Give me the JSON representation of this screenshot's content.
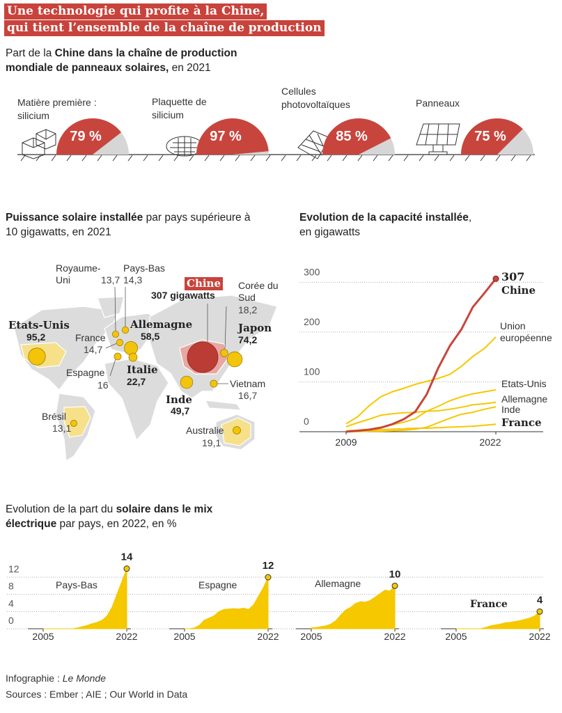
{
  "header": {
    "title_lines": [
      "Une technologie qui profite à la Chine,",
      "qui tient l’ensemble de la chaîne de production"
    ]
  },
  "chart_data": [
    {
      "type": "gauge",
      "title": [
        {
          "text": "Part de la "
        },
        {
          "text": "Chine dans la chaîne de production mondiale de panneaux solaires,",
          "bold": true
        },
        {
          "text": " en 2021"
        }
      ],
      "categories": [
        "Matière première : silicium",
        "Plaquette de silicium",
        "Cellules photovoltaïques",
        "Panneaux"
      ],
      "values": [
        79,
        97,
        85,
        75
      ],
      "value_labels": [
        "79 %",
        "97 %",
        "85 %",
        "75 %"
      ],
      "ylim": [
        0,
        100
      ],
      "color": "#c8453d",
      "track_color": "#d6d6d6"
    },
    {
      "type": "bubble-map",
      "title": [
        {
          "text": "Puissance solaire installée",
          "bold": true
        },
        {
          "text": " par pays supérieure à 10 gigawatts, en 2021"
        }
      ],
      "names": [
        "Etats-Unis",
        "Royaume-Uni",
        "Pays-Bas",
        "France",
        "Allemagne",
        "Espagne",
        "Italie",
        "Chine",
        "Corée du Sud",
        "Japon",
        "Vietnam",
        "Inde",
        "Brésil",
        "Australie"
      ],
      "values": [
        95.2,
        13.7,
        14.3,
        14.7,
        58.5,
        16,
        22.7,
        307,
        18.2,
        74.2,
        16.7,
        49.7,
        13.1,
        19.1
      ],
      "value_labels": [
        "95,2",
        "13,7",
        "14,3",
        "14,7",
        "58,5",
        "16",
        "22,7",
        "307 gigawatts",
        "18,2",
        "74,2",
        "16,7",
        "49,7",
        "13,1",
        "19,1"
      ],
      "colors": [
        "#f2c200",
        "#f2c200",
        "#f2c200",
        "#f2c200",
        "#f2c200",
        "#f2c200",
        "#f2c200",
        "#b8362f",
        "#f2c200",
        "#f2c200",
        "#f2c200",
        "#f2c200",
        "#f2c200",
        "#f2c200"
      ]
    },
    {
      "type": "line",
      "title": [
        {
          "text": "Evolution de la capacité installée",
          "bold": true
        },
        {
          "text": ", en gigawatts"
        }
      ],
      "x": [
        2009,
        2010,
        2011,
        2012,
        2013,
        2014,
        2015,
        2016,
        2017,
        2018,
        2019,
        2020,
        2021,
        2022
      ],
      "xlim": [
        2009,
        2022
      ],
      "xticks": [
        2009,
        2022
      ],
      "ylim": [
        0,
        320
      ],
      "yticks": [
        0,
        100,
        200,
        300
      ],
      "grid": true,
      "series": [
        {
          "name": "Chine",
          "color": "#c8453d",
          "values": [
            0,
            2,
            4,
            8,
            15,
            25,
            40,
            75,
            128,
            172,
            205,
            250,
            278,
            307
          ]
        },
        {
          "name": "Union européenne",
          "color": "#f5c800",
          "values": [
            16,
            30,
            52,
            70,
            80,
            87,
            95,
            101,
            107,
            115,
            131,
            151,
            167,
            190
          ]
        },
        {
          "name": "Etats-Unis",
          "color": "#f5c800",
          "values": [
            2,
            3,
            5,
            9,
            14,
            19,
            26,
            41,
            51,
            62,
            70,
            76,
            80,
            84
          ]
        },
        {
          "name": "Allemagne",
          "color": "#f5c800",
          "values": [
            10,
            18,
            25,
            33,
            36,
            38,
            39,
            41,
            42,
            45,
            49,
            54,
            56,
            59
          ]
        },
        {
          "name": "Inde",
          "color": "#f5c800",
          "values": [
            0,
            0,
            1,
            1,
            2,
            3,
            5,
            9,
            18,
            27,
            35,
            39,
            45,
            50
          ]
        },
        {
          "name": "France",
          "color": "#f5c800",
          "values": [
            0,
            1,
            2,
            4,
            5,
            6,
            7,
            7,
            8,
            9,
            10,
            11,
            13,
            15
          ]
        }
      ]
    },
    {
      "type": "area",
      "title": [
        {
          "text": "Evolution de la part du "
        },
        {
          "text": "solaire dans le mix électrique",
          "bold": true
        },
        {
          "text": " par pays, en 2022, en %"
        }
      ],
      "x": [
        2005,
        2006,
        2007,
        2008,
        2009,
        2010,
        2011,
        2012,
        2013,
        2014,
        2015,
        2016,
        2017,
        2018,
        2019,
        2020,
        2021,
        2022
      ],
      "xlim": [
        2005,
        2022
      ],
      "xticks": [
        2005,
        2022
      ],
      "ylim": [
        0,
        15
      ],
      "yticks": [
        0,
        4,
        8,
        12
      ],
      "grid": true,
      "color": "#f5c800",
      "series": [
        {
          "name": "Pays-Bas",
          "values": [
            0,
            0,
            0,
            0,
            0,
            0,
            0,
            0.2,
            0.5,
            0.8,
            1.2,
            1.5,
            2,
            3,
            5,
            8,
            11,
            14
          ]
        },
        {
          "name": "Espagne",
          "values": [
            0,
            0,
            0.2,
            0.8,
            2,
            2.5,
            3,
            4,
            4.5,
            4.6,
            4.7,
            4.6,
            4.8,
            4.5,
            5.5,
            7.5,
            9.5,
            12
          ]
        },
        {
          "name": "Allemagne",
          "values": [
            0.2,
            0.3,
            0.5,
            0.7,
            1.1,
            1.9,
            3.2,
            4.4,
            5,
            5.9,
            6.3,
            6.2,
            6.6,
            7.4,
            8.2,
            9,
            8.8,
            10
          ]
        },
        {
          "name": "France",
          "values": [
            0,
            0,
            0,
            0,
            0,
            0,
            0.3,
            0.7,
            0.9,
            1.1,
            1.4,
            1.5,
            1.7,
            1.9,
            2.2,
            2.5,
            3,
            4
          ]
        }
      ]
    }
  ],
  "footer": {
    "credit_label": "Infographie :",
    "credit": "Le Monde",
    "sources": "Sources : Ember ; AIE ; Our World in Data"
  }
}
